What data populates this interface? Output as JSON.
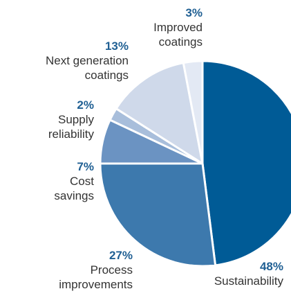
{
  "chart_data": {
    "type": "pie",
    "slices": [
      {
        "pct": "48%",
        "value": 48,
        "label_lines": [
          "Sustainability"
        ],
        "color": "#005b96"
      },
      {
        "pct": "27%",
        "value": 27,
        "label_lines": [
          "Process",
          "improvements"
        ],
        "color": "#3d79ad"
      },
      {
        "pct": "7%",
        "value": 7,
        "label_lines": [
          "Cost",
          "savings"
        ],
        "color": "#6b93c2"
      },
      {
        "pct": "2%",
        "value": 2,
        "label_lines": [
          "Supply",
          "reliability"
        ],
        "color": "#a8bedb"
      },
      {
        "pct": "13%",
        "value": 13,
        "label_lines": [
          "Next generation",
          "coatings"
        ],
        "color": "#cfd9ea"
      },
      {
        "pct": "3%",
        "value": 3,
        "label_lines": [
          "Improved",
          "coatings"
        ],
        "color": "#e3e9f4"
      }
    ],
    "pct_color": "#1f5f93",
    "start": "12 o'clock",
    "direction": "clockwise"
  }
}
